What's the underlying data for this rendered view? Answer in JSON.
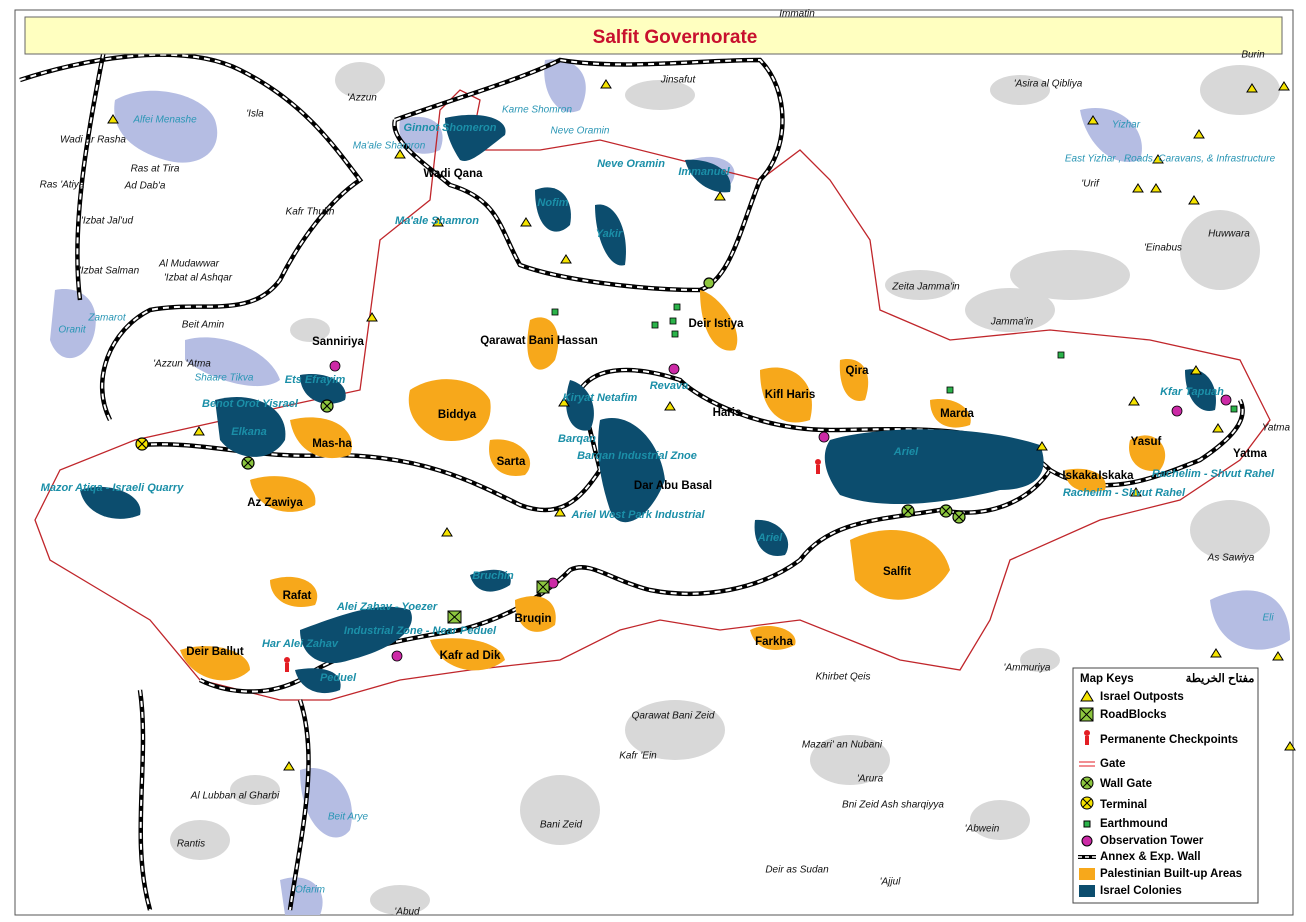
{
  "title": "Salfit Governorate",
  "localities": [
    "Wadi Qana",
    "Sanniriya",
    "Qarawat Bani Hassan",
    "Deir Istiya",
    "Qira",
    "Kifl Haris",
    "Haris",
    "Marda",
    "Biddya",
    "Mas-ha",
    "Sarta",
    "Dar Abu Basal",
    "Az Zawiya",
    "Iskaka",
    "Iskaka",
    "Yasuf",
    "Yatma",
    "Salfit",
    "Rafat",
    "Bruqin",
    "Farkha",
    "Deir Ballut",
    "Kafr ad Dik"
  ],
  "colonies": [
    "Ginnot Shomeron",
    "Neve Oramin",
    "Immanuel",
    "Nofim",
    "Yakir",
    "Ma'ale Shamron",
    "Ets Efrayim",
    "Benot Orot Yisrael",
    "Elkana",
    "Revava",
    "Kiryat Netafim",
    "Barqan",
    "Barqan Industrial Znoe",
    "Ariel",
    "Ariel West Park Industrial",
    "Ariel",
    "Mazor Atiqa - Israeli Quarry",
    "Kfar Tapuah",
    "Rachelim - Shvut Rahel",
    "Rachelim - Shvut Rahel",
    "Bruchin",
    "Alei Zahav - Yoezer",
    "Industrial Zone - Near Peduel",
    "Har Alei Zahav",
    "Peduel"
  ],
  "israeli_sites": [
    "Alfei Menashe",
    "Karne Shomron",
    "Neve Oramin",
    "Ma'ale Shamron",
    "Zamarot",
    "Oranit",
    "Shaare Tikva",
    "Yizhar",
    "East Yizhar , Roads, Caravans, & Infrastructure",
    "Eli",
    "Beit Arye",
    "Ofarim"
  ],
  "villages": [
    "Immatin",
    "Jinsafut",
    "Burin",
    "'Asira al Qibliya",
    "'Azzun",
    "'Isla",
    "Wadi ar Rasha",
    "Ras at Tira",
    "Ras 'Atiya",
    "Ad Dab'a",
    "'Urif",
    "'Izbat Jal'ud",
    "Kafr Thulth",
    "Huwwara",
    "'Einabus",
    "Al Mudawwar",
    "'Izbat al Ashqar",
    "'Izbat Salman",
    "Zeita Jamma'in",
    "Jamma'in",
    "Beit Amin",
    "'Azzun 'Atma",
    "Yatma",
    "As Sawiya",
    "Khirbet Qeis",
    "'Ammuriya",
    "Qarawat Bani Zeid",
    "Mazari' an Nubani",
    "Kafr 'Ein",
    "'Arura",
    "Bni Zeid Ash sharqiyya",
    "Al Lubban al Gharbi",
    "Bani Zeid",
    "'Abwein",
    "Rantis",
    "Deir as Sudan",
    "'Ajjul",
    "'Abud"
  ],
  "legend": {
    "title": "Map Keys",
    "title_arabic": "مفتاح الخريطة",
    "items": [
      "Israel Outposts",
      "RoadBlocks",
      "Permanente Checkpoints",
      "Gate",
      "Wall Gate",
      "Terminal",
      "Earthmound",
      "Observation Tower",
      "Annex & Exp. Wall",
      "Palestinian Built-up Areas",
      "Israel Colonies"
    ]
  }
}
